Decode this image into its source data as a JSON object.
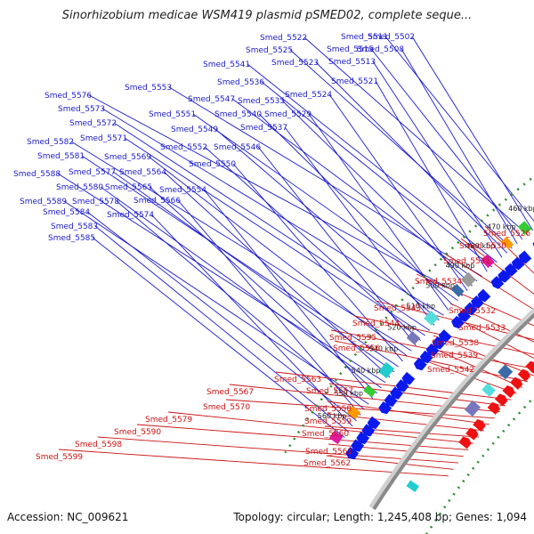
{
  "title": "Sinorhizobium medicae WSM419 plasmid pSMED02, complete seque...",
  "footer": {
    "accession": "Accession: NC_009621",
    "summary": "Topology: circular; Length: 1,245,408 bp; Genes: 1,094"
  },
  "colors": {
    "forward_gene": "#0a1aee",
    "reverse_gene": "#ee1111",
    "label_forward": "#1a1acc",
    "label_reverse": "#cc1111",
    "backbone": "#8a8a8a",
    "ticks": "#2a8a2a"
  },
  "kbp_ticks": [
    "460 kbp",
    "470 kbp",
    "480 kbp",
    "490 kbp",
    "500 kbp",
    "510 kbp",
    "520 kbp",
    "530 kbp",
    "540 kbp",
    "550 kbp",
    "560 kbp"
  ],
  "forward_labels": [
    "Smed_5511",
    "Smed_5502",
    "Smed_5522",
    "Smed_5515",
    "Smed_5508",
    "Smed_5525",
    "Smed_5523",
    "Smed_5513",
    "Smed_5541",
    "Smed_5536",
    "Smed_5521",
    "Smed_5553",
    "Smed_5547",
    "Smed_5535",
    "Smed_5524",
    "Smed_5576",
    "Smed_5551",
    "Smed_5540",
    "Smed_5529",
    "Smed_5573",
    "Smed_5549",
    "Smed_5537",
    "Smed_5572",
    "Smed_5571",
    "Smed_5552",
    "Smed_5546",
    "Smed_5582",
    "Smed_5569",
    "Smed_5550",
    "Smed_5581",
    "Smed_5577",
    "Smed_5564",
    "Smed_5588",
    "Smed_5580",
    "Smed_5565",
    "Smed_5554",
    "Smed_5589",
    "Smed_5578",
    "Smed_5566",
    "Smed_5584",
    "Smed_5574",
    "Smed_5583",
    "Smed_5585"
  ],
  "reverse_labels": [
    "Smed_5526",
    "Smed_5530",
    "Smed_5531",
    "Smed_5534",
    "Smed_5543",
    "Smed_5532",
    "Smed_5544",
    "Smed_5533",
    "Smed_5555",
    "Smed_5538",
    "Smed_5556",
    "Smed_5539",
    "Smed_5542",
    "Smed_5563",
    "Smed_5557",
    "Smed_5567",
    "Smed_5570",
    "Smed_5558",
    "Smed_5559",
    "Smed_5560",
    "Smed_5579",
    "Smed_5590",
    "Smed_5561",
    "Smed_5598",
    "Smed_5562",
    "Smed_5599"
  ]
}
